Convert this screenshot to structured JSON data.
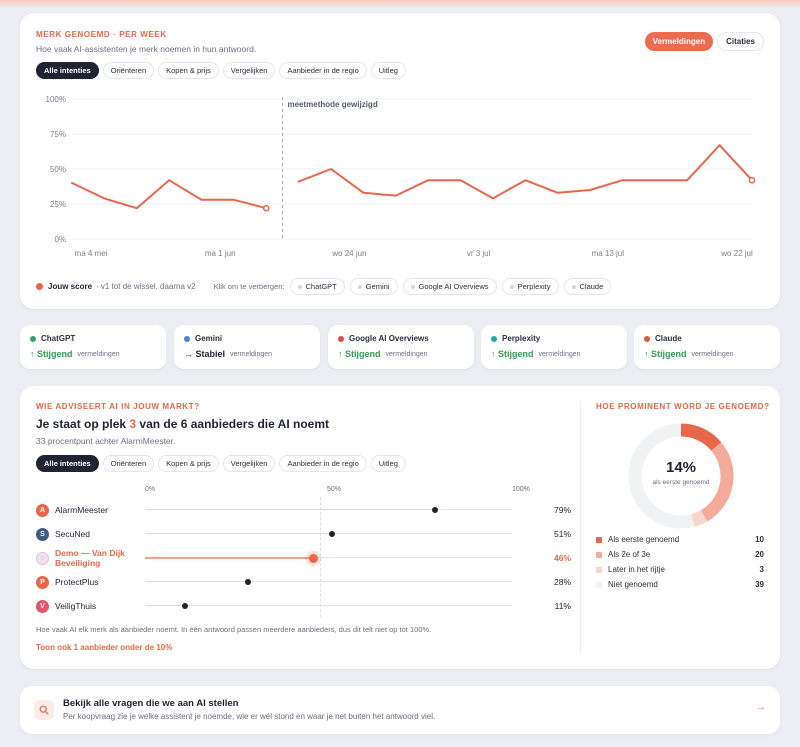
{
  "trend": {
    "eyebrow": "MERK GENOEMD · PER WEEK",
    "subtitle": "Hoe vaak AI-assistenten je merk noemen in hun antwoord.",
    "toggle": [
      "Vermeldingen",
      "Citaties"
    ],
    "tabs": [
      "Alle intenties",
      "Oriënteren",
      "Kopen & prijs",
      "Vergelijken",
      "Aanbieder in de regio",
      "Uitleg"
    ],
    "annotation": "meetmethode gewijzigd",
    "legend_label": "Jouw score",
    "legend_note": "· v1 tot de wissel, daarna v2",
    "hide_hint": "Klik om te verbergen:",
    "hide_pills": [
      "ChatGPT",
      "Gemini",
      "Google AI Overviews",
      "Perplexity",
      "Claude"
    ]
  },
  "chart_data": {
    "type": "line",
    "title": "",
    "ylim": [
      0,
      100
    ],
    "y_ticks": [
      "0%",
      "25%",
      "50%",
      "75%",
      "100%"
    ],
    "x_ticks": [
      "ma 4 mei",
      "ma 1 jun",
      "wo 24 jun",
      "vr 3 jul",
      "ma 13 jul",
      "wo 22 jul"
    ],
    "grid": true,
    "series": [
      {
        "name": "Jouw score",
        "segment": "v1",
        "values": [
          40,
          29,
          22,
          42,
          28,
          28,
          22
        ]
      },
      {
        "name": "Jouw score",
        "segment": "v2",
        "values": [
          41,
          50,
          33,
          31,
          42,
          42,
          29,
          42,
          33,
          35,
          42,
          42,
          42,
          67,
          42
        ]
      }
    ],
    "annotation": "meetmethode gewijzigd"
  },
  "assistants": [
    {
      "name": "ChatGPT",
      "color": "#2fa36b",
      "trend": "↑ Stijgend",
      "trend_color": "#2f9e4f",
      "label": "vermeldingen"
    },
    {
      "name": "Gemini",
      "color": "#4b7fe0",
      "trend": "→ Stabiel",
      "trend_color": "#1f2230",
      "label": "vermeldingen"
    },
    {
      "name": "Google AI Overviews",
      "color": "#e24848",
      "trend": "↑ Stijgend",
      "trend_color": "#2f9e4f",
      "label": "vermeldingen"
    },
    {
      "name": "Perplexity",
      "color": "#1fa8a8",
      "trend": "↑ Stijgend",
      "trend_color": "#2f9e4f",
      "label": "vermeldingen"
    },
    {
      "name": "Claude",
      "color": "#d9583c",
      "trend": "↑ Stijgend",
      "trend_color": "#2f9e4f",
      "label": "vermeldingen"
    }
  ],
  "market": {
    "eyebrow": "WIE ADVISEERT AI IN JOUW MARKT?",
    "headline_pre": "Je staat op plek ",
    "headline_rank": "3",
    "headline_post": " van de 6 aanbieders die AI noemt",
    "subtitle": "33 procentpunt achter AlarmMeester.",
    "tabs": [
      "Alle intenties",
      "Oriënteren",
      "Kopen & prijs",
      "Vergelijken",
      "Aanbieder in de regio",
      "Uitleg"
    ],
    "axis": [
      "0%",
      "50%",
      "100%"
    ],
    "footnote": "Hoe vaak AI elk merk als aanbieder noemt. In één antwoord passen meerdere aanbieders, dus dit telt niet op tot 100%.",
    "more_link": "Toon ook 1 aanbieder onder de 10%"
  },
  "ranking_data": [
    {
      "initial": "A",
      "name": "AlarmMeester",
      "value": 79,
      "pct": "79%",
      "avatar": "#e8664a",
      "highlight": false
    },
    {
      "initial": "S",
      "name": "SecuNed",
      "value": 51,
      "pct": "51%",
      "avatar": "#3f5a86",
      "highlight": false
    },
    {
      "initial": "◌",
      "name": "Demo — Van Dijk Beveiliging",
      "value": 46,
      "pct": "46%",
      "avatar": "#f3e3ef",
      "highlight": true
    },
    {
      "initial": "P",
      "name": "ProtectPlus",
      "value": 28,
      "pct": "28%",
      "avatar": "#e8664a",
      "highlight": false
    },
    {
      "initial": "V",
      "name": "VeiligThuis",
      "value": 11,
      "pct": "11%",
      "avatar": "#e0566a",
      "highlight": false
    }
  ],
  "prominence": {
    "eyebrow": "HOE PROMINENT WORD JE GENOEMD?",
    "center_value": "14%",
    "center_label": "als eerste genoemd",
    "legend": [
      {
        "label": "Als eerste genoemd",
        "value": 10,
        "color": "#e8664a"
      },
      {
        "label": "Als 2e of 3e",
        "value": 20,
        "color": "#f4ab99"
      },
      {
        "label": "Later in het rijtje",
        "value": 3,
        "color": "#f9d5cb"
      },
      {
        "label": "Niet genoemd",
        "value": 39,
        "color": "#f1f2f4"
      }
    ]
  },
  "cta": {
    "title": "Bekijk alle vragen die we aan AI stellen",
    "subtitle": "Per koopvraag zie je welke assistent je noemde, wie er wél stond en waar je net buiten het antwoord viel.",
    "arrow": "→"
  }
}
